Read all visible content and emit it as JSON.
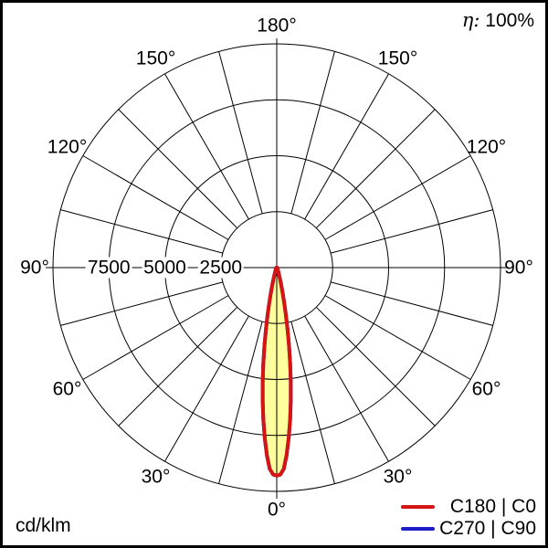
{
  "corner": {
    "efficiency_symbol": "η:",
    "efficiency_value": "100%",
    "unit": "cd/klm"
  },
  "legend": {
    "items": [
      {
        "label": "C180 | C0",
        "color": "#d51414"
      },
      {
        "label": "C270 | C90",
        "color": "#1e1ec8"
      }
    ]
  },
  "chart_data": {
    "type": "polar_photometric",
    "unit": "cd/klm",
    "efficiency_percent": 100,
    "orientation": "0 deg at bottom, 180 deg at top, gamma mirrored left/right",
    "angle_tick_step_deg": 15,
    "angle_labels": [
      "0°",
      "30°",
      "60°",
      "90°",
      "120°",
      "150°",
      "180°"
    ],
    "radial_ticks": [
      2500,
      5000,
      7500
    ],
    "radial_max": 10000,
    "grid": true,
    "fill_color": "#ffff9e",
    "peak_cd_per_klm": 9300,
    "series": [
      {
        "name": "C180 | C0",
        "color": "#d51414",
        "gamma_deg": [
          0,
          1,
          2,
          3,
          4,
          5,
          6,
          7,
          8,
          9,
          10,
          11,
          12,
          13,
          14,
          15,
          16,
          18,
          20,
          25,
          30,
          40,
          50,
          60,
          75,
          90,
          105,
          120,
          135,
          150,
          165,
          180
        ],
        "cd_per_klm": [
          9300,
          9250,
          9000,
          8400,
          7650,
          6850,
          6000,
          5150,
          4300,
          3500,
          2750,
          2120,
          1600,
          1200,
          900,
          680,
          520,
          330,
          230,
          130,
          90,
          55,
          40,
          30,
          20,
          15,
          10,
          8,
          5,
          3,
          2,
          0
        ]
      },
      {
        "name": "C270 | C90",
        "color": "#1e1ec8",
        "gamma_deg": [
          0,
          1,
          2,
          3,
          4,
          5,
          6,
          7,
          8,
          9,
          10,
          11,
          12,
          13,
          14,
          15,
          16,
          18,
          20,
          25,
          30,
          40,
          50,
          60,
          75,
          90,
          105,
          120,
          135,
          150,
          165,
          180
        ],
        "cd_per_klm": [
          9300,
          9250,
          9000,
          8400,
          7650,
          6850,
          6000,
          5150,
          4300,
          3500,
          2750,
          2120,
          1600,
          1200,
          900,
          680,
          520,
          330,
          230,
          130,
          90,
          55,
          40,
          30,
          20,
          15,
          10,
          8,
          5,
          3,
          2,
          0
        ]
      }
    ]
  }
}
